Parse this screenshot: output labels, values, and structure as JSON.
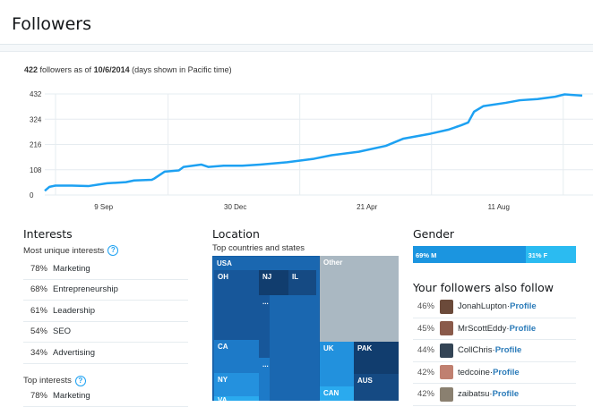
{
  "header": {
    "title": "Followers"
  },
  "summary": {
    "count": "422",
    "mid": " followers as of ",
    "date": "10/6/2014",
    "tail": " (days shown in Pacific time)"
  },
  "chart_data": {
    "type": "line",
    "title": "",
    "xlabel": "",
    "ylabel": "",
    "ylim": [
      0,
      432
    ],
    "yticks": [
      0,
      108,
      216,
      324,
      432
    ],
    "xlim": [
      0,
      457
    ],
    "xticks": [
      {
        "day": 50,
        "label": "9 Sep"
      },
      {
        "day": 162,
        "label": "30 Dec"
      },
      {
        "day": 274,
        "label": "21 Apr"
      },
      {
        "day": 386,
        "label": "11 Aug"
      }
    ],
    "grid": true,
    "color": "#1da1f2",
    "series": [
      {
        "name": "Followers",
        "points": [
          [
            0,
            18
          ],
          [
            4,
            35
          ],
          [
            9,
            40
          ],
          [
            23,
            40
          ],
          [
            37,
            38
          ],
          [
            46,
            45
          ],
          [
            53,
            50
          ],
          [
            69,
            55
          ],
          [
            76,
            62
          ],
          [
            91,
            65
          ],
          [
            93,
            70
          ],
          [
            99,
            90
          ],
          [
            102,
            100
          ],
          [
            114,
            105
          ],
          [
            118,
            120
          ],
          [
            133,
            130
          ],
          [
            139,
            120
          ],
          [
            152,
            125
          ],
          [
            168,
            125
          ],
          [
            183,
            130
          ],
          [
            206,
            140
          ],
          [
            229,
            155
          ],
          [
            244,
            170
          ],
          [
            267,
            185
          ],
          [
            290,
            210
          ],
          [
            305,
            241
          ],
          [
            328,
            262
          ],
          [
            343,
            279
          ],
          [
            354,
            298
          ],
          [
            360,
            310
          ],
          [
            365,
            356
          ],
          [
            373,
            380
          ],
          [
            392,
            394
          ],
          [
            404,
            405
          ],
          [
            419,
            410
          ],
          [
            434,
            420
          ],
          [
            442,
            430
          ],
          [
            457,
            425
          ]
        ]
      }
    ]
  },
  "interests": {
    "title": "Interests",
    "unique_label": "Most unique interests",
    "help": "?",
    "unique": [
      {
        "pct": "78%",
        "name": "Marketing"
      },
      {
        "pct": "68%",
        "name": "Entrepreneurship"
      },
      {
        "pct": "61%",
        "name": "Leadership"
      },
      {
        "pct": "54%",
        "name": "SEO"
      },
      {
        "pct": "34%",
        "name": "Advertising"
      }
    ],
    "top_label": "Top interests",
    "top": [
      {
        "pct": "78%",
        "name": "Marketing"
      }
    ]
  },
  "location": {
    "title": "Location",
    "subtitle": "Top countries and states",
    "labels": {
      "usa": "USA",
      "oh": "OH",
      "nj": "NJ",
      "il": "IL",
      "more1": "...",
      "ca": "CA",
      "more2": "...",
      "ny": "NY",
      "va": "VA",
      "other": "Other",
      "uk": "UK",
      "pak": "PAK",
      "aus": "AUS",
      "can": "CAN"
    }
  },
  "gender": {
    "title": "Gender",
    "male_label": "69% M",
    "female_label": "31% F",
    "male_pct": 69,
    "colors": {
      "male": "#1b95e0",
      "female": "#2bbbf1"
    }
  },
  "also_follow": {
    "title": "Your followers also follow",
    "profile": "Profile",
    "sep": " · ",
    "items": [
      {
        "pct": "46%",
        "name": "JonahLupton",
        "color": "#6b4a3a"
      },
      {
        "pct": "45%",
        "name": "MrScottEddy",
        "color": "#8a5a4a"
      },
      {
        "pct": "44%",
        "name": "CollChris",
        "color": "#334455"
      },
      {
        "pct": "42%",
        "name": "tedcoine",
        "color": "#c08070"
      },
      {
        "pct": "42%",
        "name": "zaibatsu",
        "color": "#8a8070"
      }
    ]
  }
}
